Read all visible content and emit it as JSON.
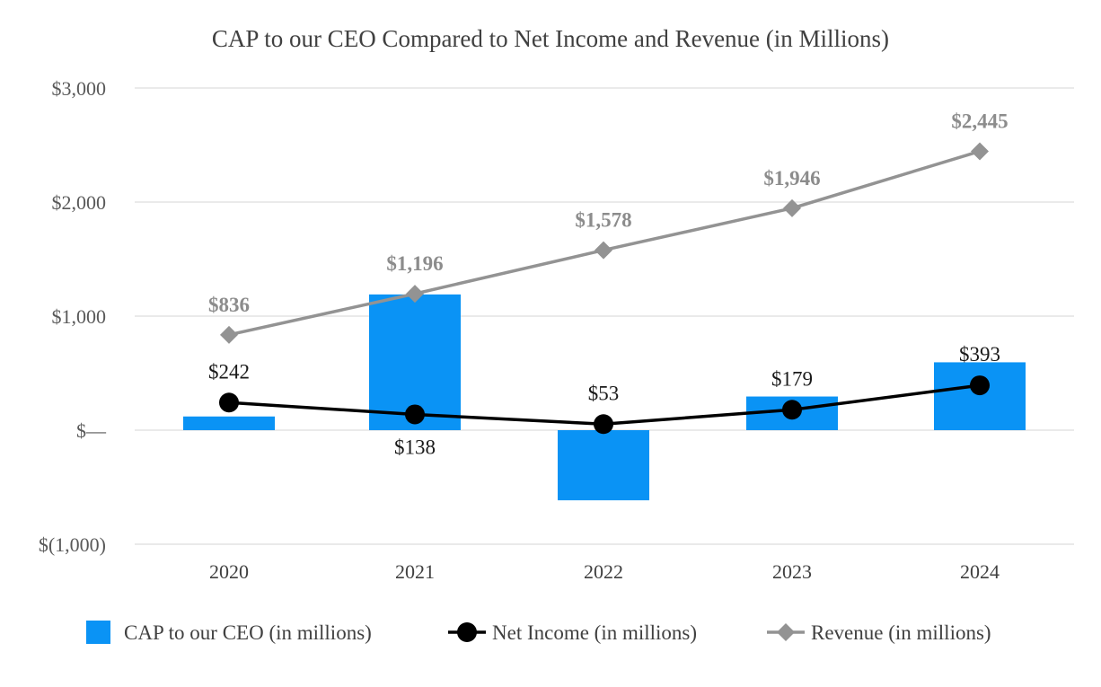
{
  "chart_data": {
    "type": "bar",
    "title": "CAP to our CEO Compared to Net Income and Revenue (in Millions)",
    "categories": [
      "2020",
      "2021",
      "2022",
      "2023",
      "2024"
    ],
    "ylim": [
      -1000,
      3000
    ],
    "y_ticks": [
      3000,
      2000,
      1000,
      0,
      -1000
    ],
    "y_tick_labels": [
      "$3,000",
      "$2,000",
      "$1,000",
      "$—",
      "$(1,000)"
    ],
    "grid": true,
    "legend_position": "bottom",
    "series": [
      {
        "name": "CAP to our CEO (in millions)",
        "kind": "bar",
        "color": "#0a93f5",
        "values": [
          120,
          1190,
          -615,
          295,
          595
        ]
      },
      {
        "name": "Net Income (in millions)",
        "kind": "line",
        "marker": "circle",
        "color": "#000000",
        "values": [
          242,
          138,
          53,
          179,
          393
        ],
        "labels": [
          "$242",
          "$138",
          "$53",
          "$179",
          "$393"
        ],
        "label_positions": [
          "above",
          "below",
          "above",
          "above",
          "above"
        ]
      },
      {
        "name": "Revenue (in millions)",
        "kind": "line",
        "marker": "diamond",
        "color": "#939393",
        "label_color": "#8c8c8c",
        "values": [
          836,
          1196,
          1578,
          1946,
          2445
        ],
        "labels": [
          "$836",
          "$1,196",
          "$1,578",
          "$1,946",
          "$2,445"
        ],
        "label_positions": [
          "above",
          "above",
          "above",
          "above",
          "above"
        ]
      }
    ]
  }
}
